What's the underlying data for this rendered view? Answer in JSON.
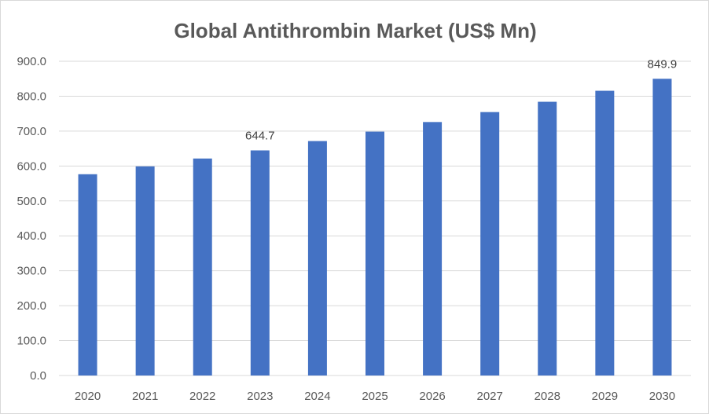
{
  "chart_data": {
    "type": "bar",
    "title": "Global Antithrombin Market (US$ Mn)",
    "xlabel": "",
    "ylabel": "",
    "categories": [
      "2020",
      "2021",
      "2022",
      "2023",
      "2024",
      "2025",
      "2026",
      "2027",
      "2028",
      "2029",
      "2030"
    ],
    "values": [
      576.5,
      599.0,
      621.5,
      644.7,
      671.5,
      698.5,
      726.0,
      754.5,
      784.0,
      815.5,
      849.9
    ],
    "data_labels": [
      {
        "index": 3,
        "text": "644.7"
      },
      {
        "index": 10,
        "text": "849.9"
      }
    ],
    "ylim": [
      0,
      900
    ],
    "yticks": [
      "0.0",
      "100.0",
      "200.0",
      "300.0",
      "400.0",
      "500.0",
      "600.0",
      "700.0",
      "800.0",
      "900.0"
    ],
    "grid": true,
    "legend": "none",
    "colors": {
      "bar": "#4472C4",
      "grid": "#d9d9d9",
      "text": "#595959"
    }
  }
}
